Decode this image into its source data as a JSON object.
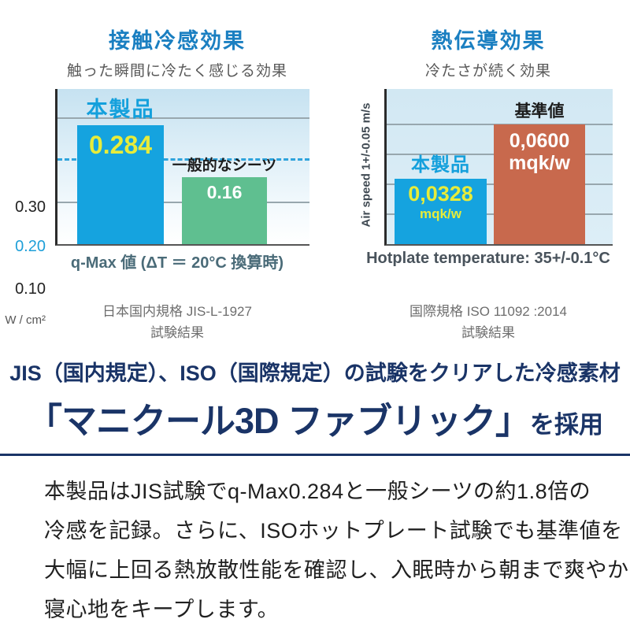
{
  "page": {
    "headline_small": "JIS（国内規定）、ISO（国際規定）の試験をクリアした冷感素材",
    "headline_big_bracket": "「マニクール3D ファブリック」",
    "headline_big_suffix": "を採用",
    "body_lines": [
      "本製品はJIS試験でq-Max0.284と一般シーツの約1.8倍の",
      "冷感を記録。さらに、ISOホットプレート試験でも基準値を",
      "大幅に上回る熱放散性能を確認し、入眠時から朝まで爽やかな",
      "寝心地をキープします。"
    ],
    "colors": {
      "accent_navy": "#1a3467",
      "title_blue": "#1a7fc1",
      "value_yellow": "#e7ec3a",
      "reference_line_blue": "#2fa3dc"
    }
  },
  "chart_data": [
    {
      "type": "bar",
      "title": "接触冷感効果",
      "subtitle": "触った瞬間に冷たく感じる効果",
      "categories": [
        "本製品",
        "一般的なシーツ"
      ],
      "values": [
        0.284,
        0.16
      ],
      "value_labels": [
        "0.284",
        "0.16"
      ],
      "bar_colors": [
        "#15a3df",
        "#5fbf90"
      ],
      "yticks": [
        "0.30",
        "0.20",
        "0.10"
      ],
      "ytick_values": [
        0.3,
        0.2,
        0.1
      ],
      "yunit": "W / cm²",
      "ylim": [
        0,
        0.372
      ],
      "reference_line": 0.2,
      "grid": "solid lines at 0.10 and 0.30, dashed blue line at 0.20",
      "xlabel": "q-Max 値 (ΔT ＝ 20°C 換算時)",
      "note_line1": "日本国内規格 JIS-L-1927",
      "note_line2": "試験結果"
    },
    {
      "type": "bar",
      "title": "熱伝導効果",
      "subtitle": "冷たさが続く効果",
      "categories": [
        "本製品",
        "基準値"
      ],
      "values": [
        0.0328,
        0.06
      ],
      "value_labels": [
        "0,0328",
        "0,0600"
      ],
      "unit_labels": [
        "mqk/w",
        "mqk/w"
      ],
      "bar_colors": [
        "#15a3df",
        "#c8694d"
      ],
      "ylabel": "Air speed 1+/-0.05 m/s",
      "ylim": [
        0,
        0.0778
      ],
      "gridline_values": [
        0.015,
        0.03,
        0.045,
        0.06
      ],
      "xlabel": "Hotplate temperature: 35+/-0.1°C",
      "note_line1": "国際規格 ISO 11092 :2014",
      "note_line2": "試験結果"
    }
  ]
}
